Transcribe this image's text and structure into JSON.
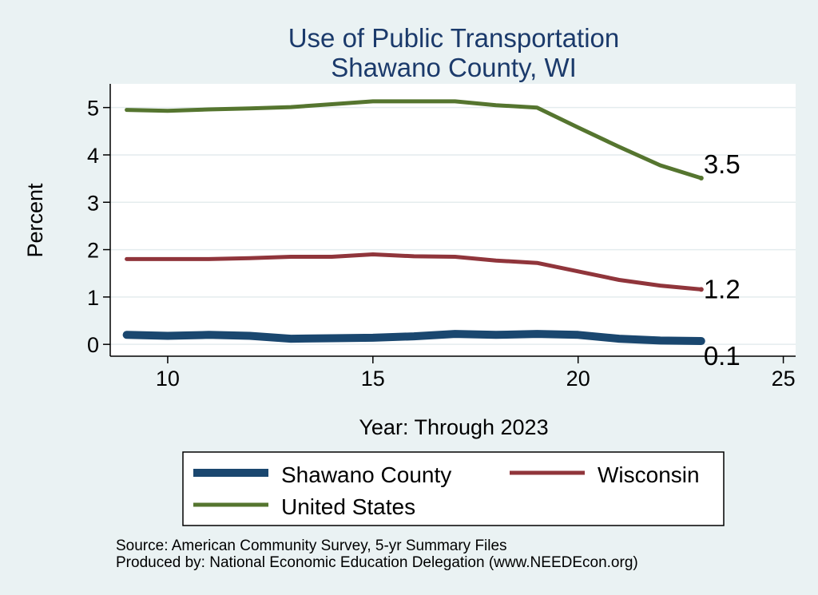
{
  "chart_data": {
    "type": "line",
    "title": [
      "Use of Public Transportation",
      "Shawano County, WI"
    ],
    "xlabel": "Year: Through 2023",
    "ylabel": "Percent",
    "xlim": [
      8.6,
      25.3
    ],
    "ylim": [
      -0.25,
      5.5
    ],
    "xticks": [
      10,
      15,
      20,
      25
    ],
    "yticks": [
      0,
      1,
      2,
      3,
      4,
      5
    ],
    "grid": true,
    "legend_position": "bottom",
    "series": [
      {
        "name": "Shawano County",
        "color": "#1a476f",
        "width": 10,
        "x": [
          9,
          10,
          11,
          12,
          13,
          14,
          15,
          16,
          17,
          18,
          19,
          20,
          21,
          22,
          23
        ],
        "y": [
          0.2,
          0.18,
          0.2,
          0.18,
          0.12,
          0.13,
          0.14,
          0.17,
          0.22,
          0.2,
          0.22,
          0.2,
          0.12,
          0.08,
          0.07
        ],
        "end_label": "0.1"
      },
      {
        "name": "Wisconsin",
        "color": "#90353b",
        "width": 5,
        "x": [
          9,
          10,
          11,
          12,
          13,
          14,
          15,
          16,
          17,
          18,
          19,
          20,
          21,
          22,
          23
        ],
        "y": [
          1.8,
          1.8,
          1.8,
          1.82,
          1.85,
          1.85,
          1.9,
          1.86,
          1.85,
          1.77,
          1.72,
          1.54,
          1.36,
          1.24,
          1.16
        ],
        "end_label": "1.2"
      },
      {
        "name": "United States",
        "color": "#55752f",
        "width": 5,
        "x": [
          9,
          10,
          11,
          12,
          13,
          14,
          15,
          16,
          17,
          18,
          19,
          20,
          21,
          22,
          23
        ],
        "y": [
          4.95,
          4.93,
          4.96,
          4.98,
          5.01,
          5.07,
          5.13,
          5.13,
          5.13,
          5.05,
          5.0,
          4.58,
          4.17,
          3.78,
          3.51
        ],
        "end_label": "3.5"
      }
    ],
    "notes": [
      "Source: American Community Survey, 5-yr Summary Files",
      "Produced by: National Economic Education Delegation (www.NEEDEcon.org)"
    ]
  }
}
